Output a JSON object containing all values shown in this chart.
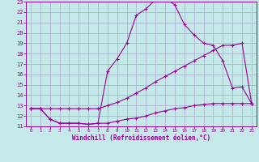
{
  "xlabel": "Windchill (Refroidissement éolien,°C)",
  "xlim": [
    -0.5,
    23.5
  ],
  "ylim": [
    11,
    23
  ],
  "xticks": [
    0,
    1,
    2,
    3,
    4,
    5,
    6,
    7,
    8,
    9,
    10,
    11,
    12,
    13,
    14,
    15,
    16,
    17,
    18,
    19,
    20,
    21,
    22,
    23
  ],
  "yticks": [
    11,
    12,
    13,
    14,
    15,
    16,
    17,
    18,
    19,
    20,
    21,
    22,
    23
  ],
  "bg_color": "#c5e8e8",
  "line_color": "#990099",
  "grid_color": "#aaaacc",
  "line1_x": [
    0,
    1,
    2,
    3,
    4,
    5,
    6,
    7,
    8,
    9,
    10,
    11,
    12,
    13,
    14,
    15,
    16,
    17,
    18,
    19,
    20,
    21,
    22,
    23
  ],
  "line1_y": [
    12.7,
    12.7,
    11.7,
    11.3,
    11.3,
    11.3,
    11.2,
    11.3,
    11.3,
    11.5,
    11.7,
    11.8,
    12.0,
    12.3,
    12.5,
    12.7,
    12.8,
    13.0,
    13.1,
    13.2,
    13.2,
    13.2,
    13.2,
    13.2
  ],
  "line2_x": [
    0,
    1,
    2,
    3,
    4,
    5,
    6,
    7,
    8,
    9,
    10,
    11,
    12,
    13,
    14,
    15,
    16,
    17,
    18,
    19,
    20,
    21,
    22,
    23
  ],
  "line2_y": [
    12.7,
    12.7,
    11.7,
    11.3,
    11.3,
    11.3,
    11.2,
    11.3,
    16.3,
    17.5,
    19.0,
    21.7,
    22.3,
    23.2,
    23.3,
    22.7,
    20.8,
    19.8,
    19.0,
    18.8,
    17.3,
    14.7,
    14.8,
    13.2
  ],
  "line3_x": [
    0,
    1,
    2,
    3,
    4,
    5,
    6,
    7,
    8,
    9,
    10,
    11,
    12,
    13,
    14,
    15,
    16,
    17,
    18,
    19,
    20,
    21,
    22,
    23
  ],
  "line3_y": [
    12.7,
    12.7,
    12.7,
    12.7,
    12.7,
    12.7,
    12.7,
    12.7,
    13.0,
    13.3,
    13.7,
    14.2,
    14.7,
    15.3,
    15.8,
    16.3,
    16.8,
    17.3,
    17.8,
    18.3,
    18.8,
    18.8,
    19.0,
    13.2
  ]
}
